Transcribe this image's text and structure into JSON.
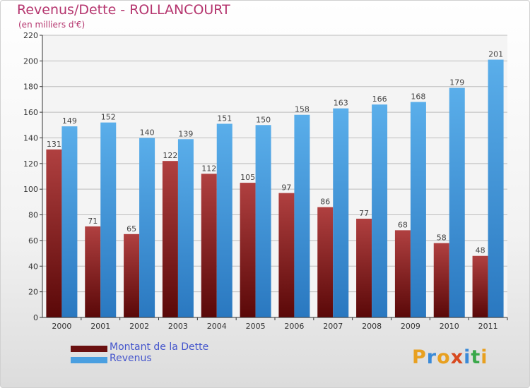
{
  "chart_data": {
    "type": "bar",
    "title": "Revenus/Dette - ROLLANCOURT",
    "subtitle": "(en milliers d'€)",
    "categories": [
      "2000",
      "2001",
      "2002",
      "2003",
      "2004",
      "2005",
      "2006",
      "2007",
      "2008",
      "2009",
      "2010",
      "2011"
    ],
    "series": [
      {
        "name": "Montant de la Dette",
        "color": "#7a1a1a",
        "values": [
          131,
          71,
          65,
          122,
          112,
          105,
          97,
          86,
          77,
          68,
          58,
          48
        ]
      },
      {
        "name": "Revenus",
        "color": "#4a9fe0",
        "values": [
          149,
          152,
          140,
          139,
          151,
          150,
          158,
          163,
          166,
          168,
          179,
          201
        ]
      }
    ],
    "ylim": [
      0,
      220
    ],
    "yticks": [
      0,
      20,
      40,
      60,
      80,
      100,
      120,
      140,
      160,
      180,
      200,
      220
    ],
    "grid": true,
    "legend_position": "bottom-left",
    "data_labels": true
  },
  "logo": {
    "letters": [
      "P",
      "r",
      "o",
      "x",
      "i",
      "t",
      "i"
    ],
    "colors": [
      "#e8a020",
      "#3a8ad8",
      "#e8a020",
      "#d84a20",
      "#3a8ad8",
      "#3aa84a",
      "#e8a020"
    ]
  }
}
